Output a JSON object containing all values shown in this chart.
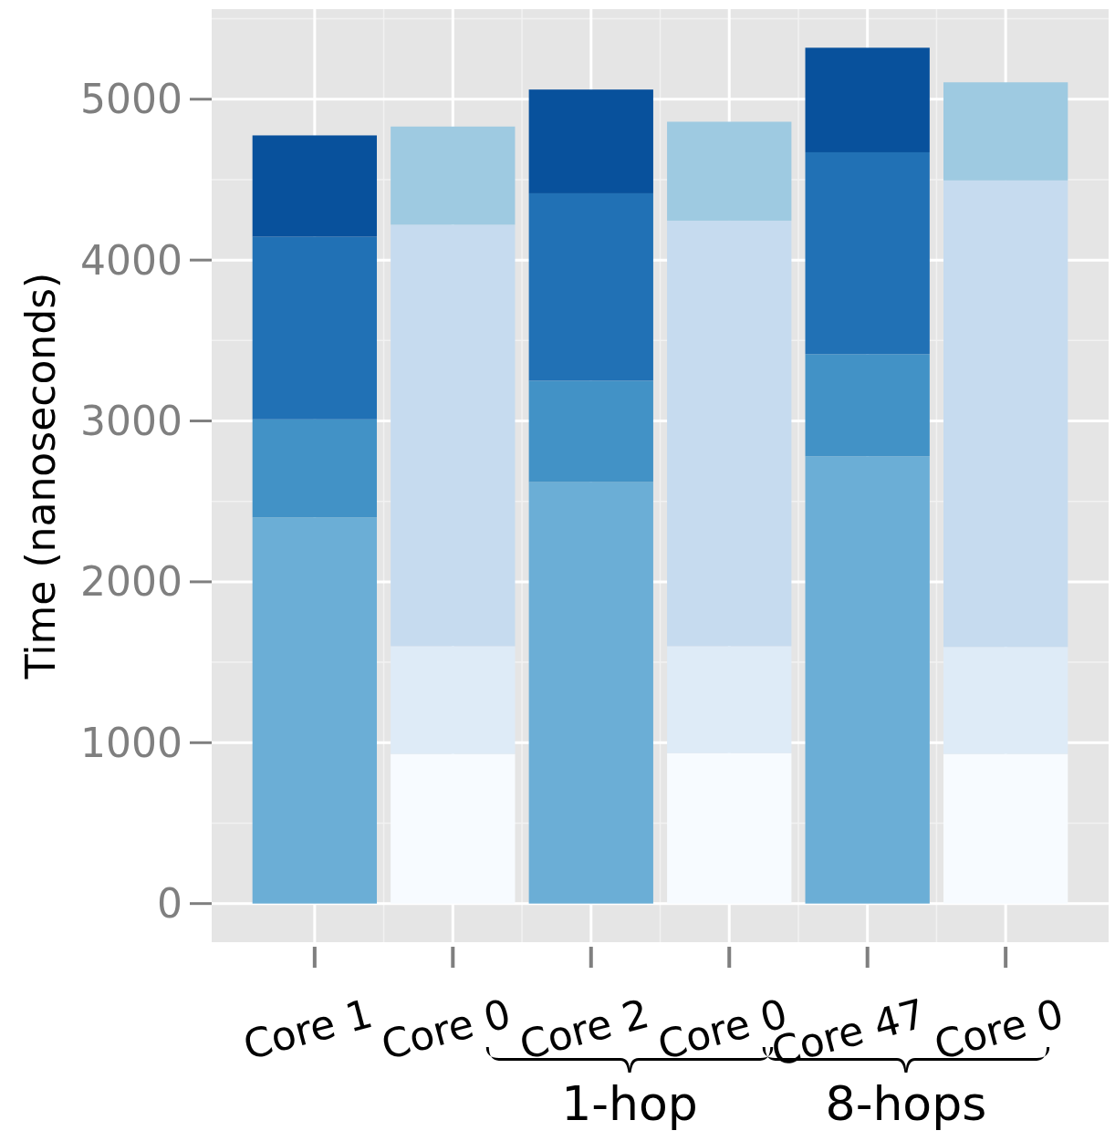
{
  "chart_data": {
    "type": "bar",
    "stacked": true,
    "ylabel": "Time (nanoseconds)",
    "categories": [
      "Core 1",
      "Core 0",
      "Core 2",
      "Core 0",
      "Core 47",
      "Core 0"
    ],
    "series": [
      {
        "color": "#f7fbff",
        "values": [
          null,
          930,
          null,
          935,
          null,
          930
        ]
      },
      {
        "color": "#deebf7",
        "values": [
          null,
          670,
          null,
          665,
          null,
          665
        ]
      },
      {
        "color": "#c6dbef",
        "values": [
          null,
          2620,
          null,
          2645,
          null,
          2900
        ]
      },
      {
        "color": "#9ecae1",
        "values": [
          null,
          610,
          null,
          615,
          null,
          610
        ]
      },
      {
        "color": "#6baed6",
        "values": [
          2400,
          null,
          2620,
          null,
          2780,
          null
        ]
      },
      {
        "color": "#4292c6",
        "values": [
          610,
          null,
          630,
          null,
          635,
          null
        ]
      },
      {
        "color": "#2171b5",
        "values": [
          1135,
          null,
          1165,
          null,
          1255,
          null
        ]
      },
      {
        "color": "#08519c",
        "values": [
          630,
          null,
          645,
          null,
          650,
          null
        ]
      }
    ],
    "ylim": [
      -240,
      5560
    ],
    "yticks": [
      0,
      1000,
      2000,
      3000,
      4000,
      5000
    ],
    "grid": true,
    "annotations": [
      "1-hop",
      "8-hops"
    ]
  }
}
